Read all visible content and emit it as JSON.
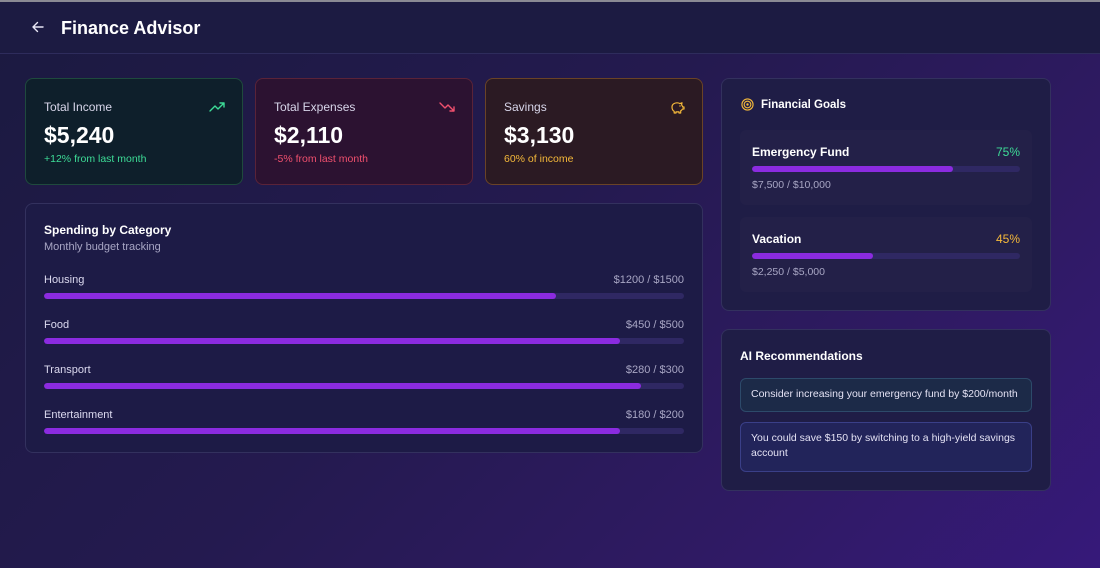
{
  "header": {
    "title": "Finance Advisor",
    "back_icon": "arrow-left-icon"
  },
  "stats": {
    "income": {
      "label": "Total Income",
      "value": "$5,240",
      "note": "+12% from last month",
      "icon": "trending-up-icon",
      "color": "#3ddc97"
    },
    "expenses": {
      "label": "Total Expenses",
      "value": "$2,110",
      "note": "-5% from last month",
      "icon": "trending-down-icon",
      "color": "#f0506e"
    },
    "savings": {
      "label": "Savings",
      "value": "$3,130",
      "note": "60% of income",
      "icon": "piggy-bank-icon",
      "color": "#f5b93a"
    }
  },
  "spending": {
    "title": "Spending by Category",
    "subtitle": "Monthly budget tracking",
    "categories": [
      {
        "name": "Housing",
        "amount": "$1200 / $1500",
        "spent": 1200,
        "budget": 1500
      },
      {
        "name": "Food",
        "amount": "$450 / $500",
        "spent": 450,
        "budget": 500
      },
      {
        "name": "Transport",
        "amount": "$280 / $300",
        "spent": 280,
        "budget": 300
      },
      {
        "name": "Entertainment",
        "amount": "$180 / $200",
        "spent": 180,
        "budget": 200
      }
    ]
  },
  "goals": {
    "title": "Financial Goals",
    "icon": "target-icon",
    "items": [
      {
        "name": "Emergency Fund",
        "percent_label": "75%",
        "percent": 75,
        "amount": "$7,500 / $10,000",
        "color": "#3ddc97"
      },
      {
        "name": "Vacation",
        "percent_label": "45%",
        "percent": 45,
        "amount": "$2,250 / $5,000",
        "color": "#f5b93a"
      }
    ]
  },
  "recommendations": {
    "title": "AI Recommendations",
    "items": [
      "Consider increasing your emergency fund by $200/month",
      "You could save $150 by switching to a high-yield savings account"
    ]
  },
  "colors": {
    "accent": "#8b2be0",
    "track": "#2f2863"
  }
}
